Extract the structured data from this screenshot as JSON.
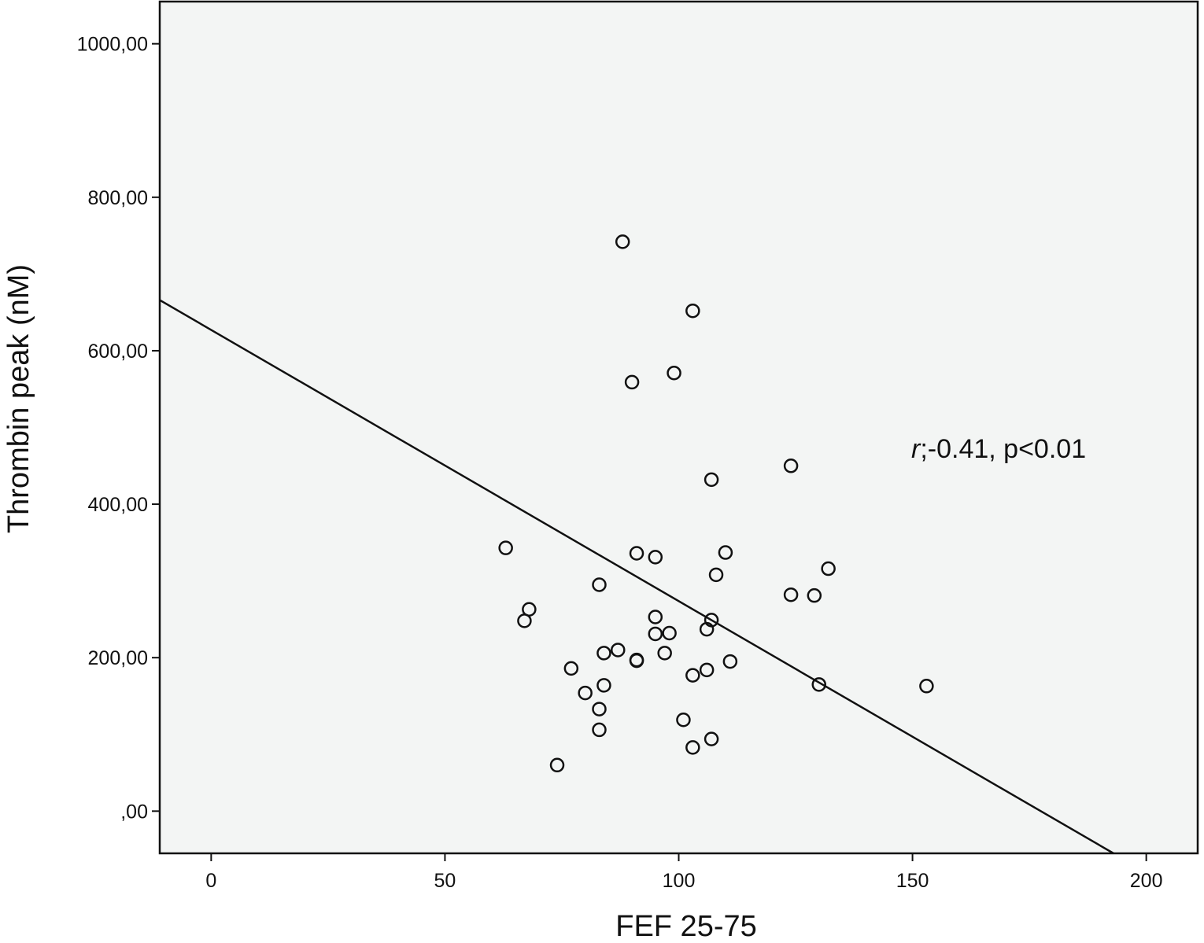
{
  "chart_data": {
    "type": "scatter",
    "xlabel": "FEF 25-75",
    "ylabel": "Thrombin peak (nM)",
    "xlim": [
      -11,
      211
    ],
    "ylim": [
      -55,
      1055
    ],
    "x_ticks": [
      {
        "value": 0,
        "label": "0"
      },
      {
        "value": 50,
        "label": "50"
      },
      {
        "value": 100,
        "label": "100"
      },
      {
        "value": 150,
        "label": "150"
      },
      {
        "value": 200,
        "label": "200"
      }
    ],
    "y_ticks": [
      {
        "value": 0,
        "label": ",00"
      },
      {
        "value": 200,
        "label": "200,00"
      },
      {
        "value": 400,
        "label": "400,00"
      },
      {
        "value": 600,
        "label": "600,00"
      },
      {
        "value": 800,
        "label": "800,00"
      },
      {
        "value": 1000,
        "label": "1000,00"
      }
    ],
    "grid": false,
    "background_color": "#f3f5f4",
    "marker_color": "#111111",
    "points": [
      {
        "x": 88,
        "y": 742
      },
      {
        "x": 103,
        "y": 652
      },
      {
        "x": 99,
        "y": 571
      },
      {
        "x": 90,
        "y": 559
      },
      {
        "x": 124,
        "y": 450
      },
      {
        "x": 107,
        "y": 432
      },
      {
        "x": 63,
        "y": 343
      },
      {
        "x": 91,
        "y": 336
      },
      {
        "x": 95,
        "y": 331
      },
      {
        "x": 110,
        "y": 337
      },
      {
        "x": 132,
        "y": 316
      },
      {
        "x": 108,
        "y": 308
      },
      {
        "x": 83,
        "y": 295
      },
      {
        "x": 124,
        "y": 282
      },
      {
        "x": 129,
        "y": 281
      },
      {
        "x": 68,
        "y": 263
      },
      {
        "x": 67,
        "y": 248
      },
      {
        "x": 95,
        "y": 253
      },
      {
        "x": 107,
        "y": 249
      },
      {
        "x": 106,
        "y": 237
      },
      {
        "x": 95,
        "y": 231
      },
      {
        "x": 98,
        "y": 232
      },
      {
        "x": 84,
        "y": 206
      },
      {
        "x": 87,
        "y": 210
      },
      {
        "x": 97,
        "y": 206
      },
      {
        "x": 91,
        "y": 197
      },
      {
        "x": 91,
        "y": 196
      },
      {
        "x": 111,
        "y": 195
      },
      {
        "x": 77,
        "y": 186
      },
      {
        "x": 106,
        "y": 184
      },
      {
        "x": 103,
        "y": 177
      },
      {
        "x": 130,
        "y": 165
      },
      {
        "x": 153,
        "y": 163
      },
      {
        "x": 84,
        "y": 164
      },
      {
        "x": 80,
        "y": 154
      },
      {
        "x": 83,
        "y": 133
      },
      {
        "x": 101,
        "y": 119
      },
      {
        "x": 83,
        "y": 106
      },
      {
        "x": 107,
        "y": 94
      },
      {
        "x": 103,
        "y": 83
      },
      {
        "x": 74,
        "y": 60
      }
    ],
    "regression_line": {
      "x": [
        -11,
        193
      ],
      "y": [
        666,
        -55
      ]
    },
    "annotation": {
      "r_symbol": "r",
      "text": ";-0.41, p<0.01"
    }
  }
}
